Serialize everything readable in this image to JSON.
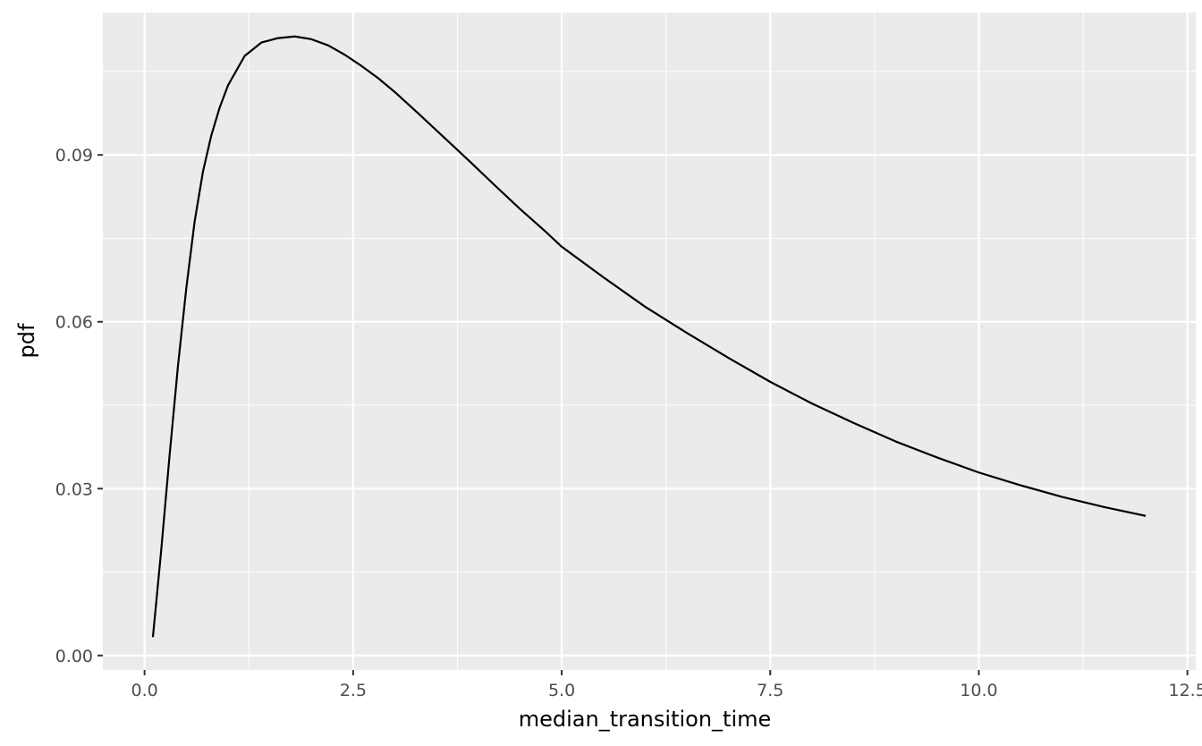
{
  "chart_data": {
    "type": "line",
    "title": "",
    "xlabel": "median_transition_time",
    "ylabel": "pdf",
    "xlim": [
      -0.5,
      12.6
    ],
    "ylim": [
      -0.0026,
      0.1156
    ],
    "x_ticks": [
      0.0,
      2.5,
      5.0,
      7.5,
      10.0,
      12.5
    ],
    "x_tick_labels": [
      "0.0",
      "2.5",
      "5.0",
      "7.5",
      "10.0",
      "12.5"
    ],
    "x_minor_ticks": [
      1.25,
      3.75,
      6.25,
      8.75,
      11.25
    ],
    "y_ticks": [
      0.0,
      0.03,
      0.06,
      0.09
    ],
    "y_tick_labels": [
      "0.00",
      "0.03",
      "0.06",
      "0.09"
    ],
    "y_minor_ticks": [
      0.015,
      0.045,
      0.075,
      0.105
    ],
    "grid": true,
    "colors": {
      "panel": "#EBEBEB",
      "grid": "#FFFFFF",
      "line": "#000000",
      "tick_text": "#4D4D4D",
      "tick_mark": "#333333",
      "axis_title": "#000000"
    },
    "series": [
      {
        "x": [
          0.1,
          0.2,
          0.3,
          0.4,
          0.5,
          0.6,
          0.7,
          0.8,
          0.9,
          1.0,
          1.2,
          1.4,
          1.6,
          1.8,
          2.0,
          2.2,
          2.4,
          2.6,
          2.8,
          3.0,
          3.3,
          3.6,
          3.9,
          4.2,
          4.5,
          4.8,
          5.0,
          5.5,
          6.0,
          6.5,
          7.0,
          7.5,
          8.0,
          8.5,
          9.0,
          9.5,
          10.0,
          10.5,
          11.0,
          11.5,
          12.0
        ],
        "values": [
          0.0033,
          0.019,
          0.036,
          0.052,
          0.066,
          0.078,
          0.087,
          0.0935,
          0.0985,
          0.1025,
          0.1078,
          0.1102,
          0.111,
          0.1113,
          0.1108,
          0.1097,
          0.108,
          0.106,
          0.1038,
          0.1013,
          0.0972,
          0.093,
          0.0888,
          0.0845,
          0.0803,
          0.0763,
          0.0735,
          0.068,
          0.0627,
          0.058,
          0.0535,
          0.0492,
          0.0453,
          0.0418,
          0.0385,
          0.0356,
          0.0329,
          0.0306,
          0.0285,
          0.0267,
          0.0251
        ]
      }
    ]
  }
}
